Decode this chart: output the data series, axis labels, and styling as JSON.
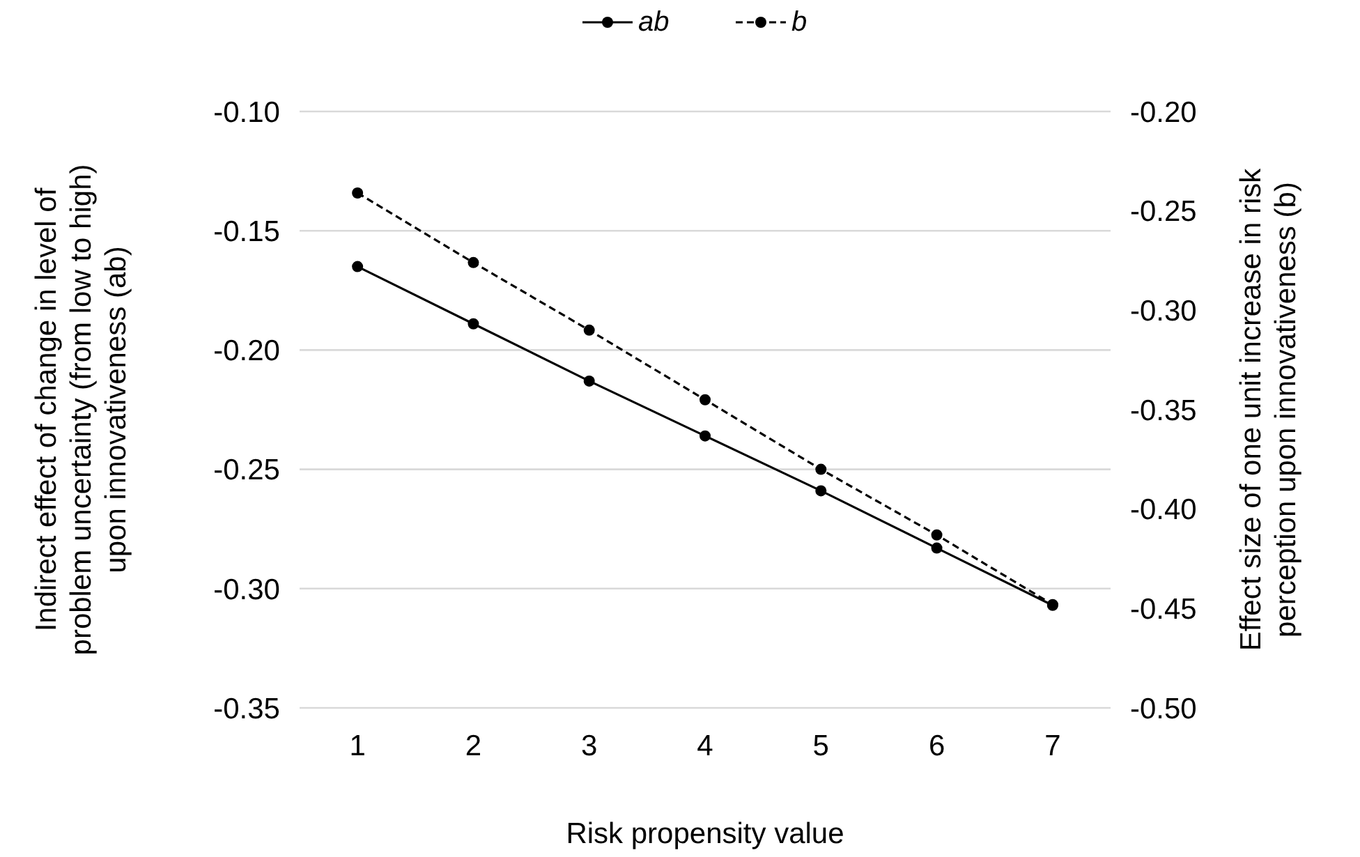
{
  "chart_data": {
    "type": "line",
    "xlabel": "Risk propensity value",
    "ylabel": "Indirect effect of change in level of problem uncertainty (from low to high) upon innovativeness (ab)",
    "y2label": "Effect size of one unit increase in risk perception upon innovativeness (b)",
    "categories": [
      "1",
      "2",
      "3",
      "4",
      "5",
      "6",
      "7"
    ],
    "series": [
      {
        "name": "ab",
        "color": "#000000",
        "line_style": "solid",
        "values": [
          -0.165,
          -0.189,
          -0.213,
          -0.236,
          -0.259,
          -0.283,
          -0.307
        ]
      },
      {
        "name": "b",
        "color": "#000000",
        "line_style": "dashed",
        "axis": "y2",
        "values": [
          -0.241,
          -0.276,
          -0.31,
          -0.345,
          -0.38,
          -0.413,
          -0.448
        ]
      }
    ],
    "ylim": [
      -0.35,
      -0.1
    ],
    "yticks": [
      {
        "value": -0.35,
        "label": "-0.35"
      },
      {
        "value": -0.3,
        "label": "-0.30"
      },
      {
        "value": -0.25,
        "label": "-0.25"
      },
      {
        "value": -0.2,
        "label": "-0.20"
      },
      {
        "value": -0.15,
        "label": "-0.15"
      },
      {
        "value": -0.1,
        "label": "-0.10"
      }
    ],
    "y2lim": [
      -0.5,
      -0.2
    ],
    "y2ticks": [
      {
        "value": -0.5,
        "label": "-0.50"
      },
      {
        "value": -0.45,
        "label": "-0.45"
      },
      {
        "value": -0.4,
        "label": "-0.40"
      },
      {
        "value": -0.35,
        "label": "-0.35"
      },
      {
        "value": -0.3,
        "label": "-0.30"
      },
      {
        "value": -0.25,
        "label": "-0.25"
      },
      {
        "value": -0.2,
        "label": "-0.20"
      }
    ],
    "grid": "y",
    "legend": "top",
    "marker": "circle"
  }
}
